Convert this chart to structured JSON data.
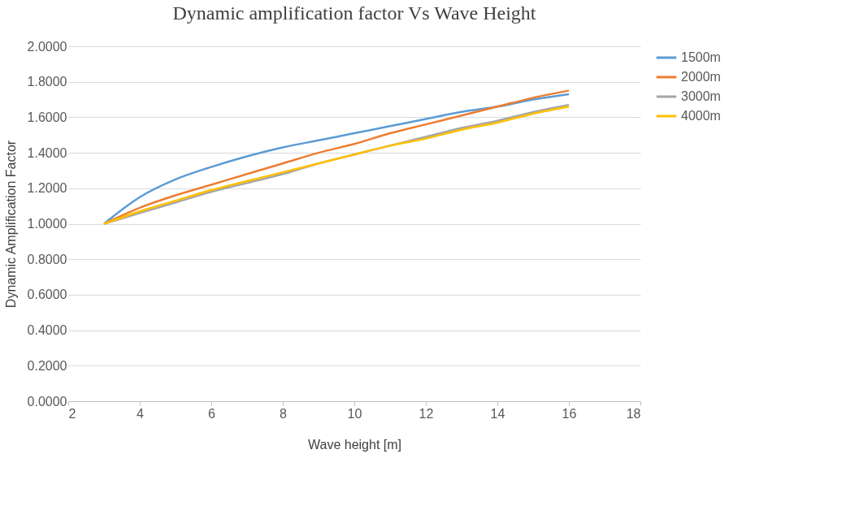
{
  "chart_data": {
    "type": "line",
    "title": "Dynamic amplification factor Vs Wave Height",
    "xlabel": "Wave height [m]",
    "ylabel": "Dynamic Amplification Factor",
    "x": [
      3,
      4,
      5,
      6,
      7,
      8,
      9,
      10,
      11,
      12,
      13,
      14,
      15,
      16
    ],
    "series": [
      {
        "name": "1500m",
        "color": "#5b9bd5",
        "values": [
          1.0,
          1.15,
          1.25,
          1.32,
          1.38,
          1.43,
          1.47,
          1.51,
          1.55,
          1.59,
          1.63,
          1.66,
          1.7,
          1.73
        ]
      },
      {
        "name": "2000m",
        "color": "#ed7d31",
        "values": [
          1.0,
          1.09,
          1.16,
          1.22,
          1.28,
          1.34,
          1.4,
          1.45,
          1.51,
          1.56,
          1.61,
          1.66,
          1.71,
          1.75
        ]
      },
      {
        "name": "3000m",
        "color": "#a5a5a5",
        "values": [
          1.0,
          1.06,
          1.12,
          1.18,
          1.23,
          1.28,
          1.34,
          1.39,
          1.44,
          1.49,
          1.54,
          1.58,
          1.63,
          1.67
        ]
      },
      {
        "name": "4000m",
        "color": "#ffc000",
        "values": [
          1.0,
          1.07,
          1.13,
          1.19,
          1.24,
          1.29,
          1.34,
          1.39,
          1.44,
          1.48,
          1.53,
          1.57,
          1.62,
          1.66
        ]
      }
    ],
    "xlim": [
      2,
      18
    ],
    "xticks": [
      2,
      4,
      6,
      8,
      10,
      12,
      14,
      16,
      18
    ],
    "ylim": [
      0,
      2
    ],
    "yticks": [
      {
        "value": 0,
        "label": "0.0000"
      },
      {
        "value": 0.2,
        "label": "0.2000"
      },
      {
        "value": 0.4,
        "label": "0.4000"
      },
      {
        "value": 0.6,
        "label": "0.6000"
      },
      {
        "value": 0.8,
        "label": "0.8000"
      },
      {
        "value": 1.0,
        "label": "1.0000"
      },
      {
        "value": 1.2,
        "label": "1.2000"
      },
      {
        "value": 1.4,
        "label": "1.4000"
      },
      {
        "value": 1.6,
        "label": "1.6000"
      },
      {
        "value": 1.8,
        "label": "1.8000"
      },
      {
        "value": 2.0,
        "label": "2.0000"
      }
    ],
    "grid": "y",
    "legend": "right",
    "marker": "none",
    "line_style": "solid"
  }
}
